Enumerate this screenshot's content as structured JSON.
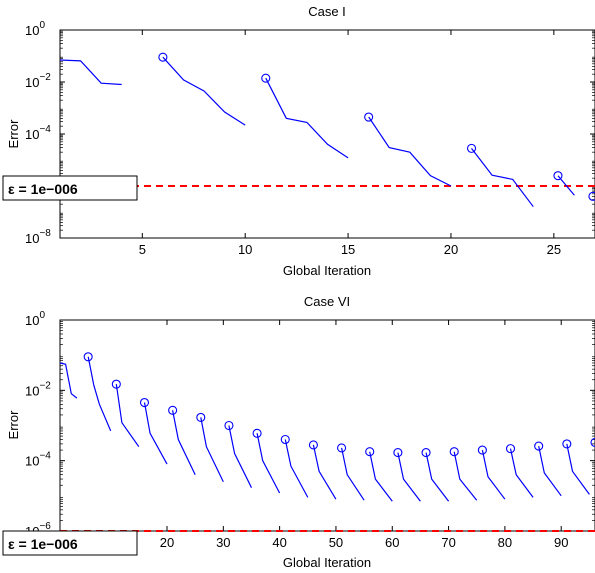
{
  "chart_data": [
    {
      "type": "line",
      "title": "Case I",
      "xlabel": "Global Iteration",
      "ylabel": "Error",
      "yscale": "log",
      "xlim": [
        1,
        27
      ],
      "ylim": [
        1e-08,
        1
      ],
      "xticks": [
        5,
        10,
        15,
        20,
        25
      ],
      "yticks": [
        {
          "value": 1,
          "base": "10",
          "exp": "0"
        },
        {
          "value": 0.01,
          "base": "10",
          "exp": "−2"
        },
        {
          "value": 0.0001,
          "base": "10",
          "exp": "−4"
        },
        {
          "value": 1e-06,
          "base": "10",
          "exp": "−6"
        },
        {
          "value": 1e-08,
          "base": "10",
          "exp": "−8"
        }
      ],
      "threshold": {
        "value": 1e-06,
        "label": "ε = 1e−006",
        "color": "#ff0000",
        "style": "dashed"
      },
      "line_color": "#0000ff",
      "segments": [
        {
          "x": [
            1,
            2,
            3,
            4
          ],
          "y": [
            0.07,
            0.065,
            0.009,
            0.008
          ],
          "marker_first": false
        },
        {
          "x": [
            6,
            7,
            8,
            9,
            10
          ],
          "y": [
            0.09,
            0.012,
            0.0045,
            0.0007,
            0.00022
          ],
          "marker_first": true
        },
        {
          "x": [
            11,
            12,
            13,
            14,
            15
          ],
          "y": [
            0.014,
            0.0004,
            0.00028,
            4e-05,
            1.2e-05
          ],
          "marker_first": true
        },
        {
          "x": [
            16,
            17,
            18,
            19,
            20
          ],
          "y": [
            0.00045,
            3e-05,
            2e-05,
            2.5e-06,
            1e-06
          ],
          "marker_first": true
        },
        {
          "x": [
            21,
            22,
            23,
            24
          ],
          "y": [
            2.8e-05,
            2.6e-06,
            1.8e-06,
            1.6e-07
          ],
          "marker_first": true
        },
        {
          "x": [
            25.2,
            26
          ],
          "y": [
            2.5e-06,
            4.4e-07
          ],
          "marker_first": true
        },
        {
          "x": [
            26.9
          ],
          "y": [
            4e-07
          ],
          "marker_first": true
        }
      ]
    },
    {
      "type": "line",
      "title": "Case VI",
      "xlabel": "Global Iteration",
      "ylabel": "Error",
      "yscale": "log",
      "xlim": [
        1,
        96
      ],
      "ylim": [
        1e-06,
        1
      ],
      "xticks": [
        20,
        30,
        40,
        50,
        60,
        70,
        80,
        90
      ],
      "yticks": [
        {
          "value": 1,
          "base": "10",
          "exp": "0"
        },
        {
          "value": 0.01,
          "base": "10",
          "exp": "−2"
        },
        {
          "value": 0.0001,
          "base": "10",
          "exp": "−4"
        },
        {
          "value": 1e-06,
          "base": "10",
          "exp": "−6"
        }
      ],
      "threshold": {
        "value": 1e-06,
        "label": "ε = 1e−006",
        "color": "#ff0000",
        "style": "dashed"
      },
      "line_color": "#0000ff",
      "segments": [
        {
          "x": [
            1,
            2,
            3,
            4
          ],
          "y": [
            0.06,
            0.055,
            0.008,
            0.006
          ],
          "marker_first": false
        },
        {
          "x": [
            6,
            7,
            8,
            10
          ],
          "y": [
            0.09,
            0.014,
            0.004,
            0.0007
          ],
          "marker_first": true
        },
        {
          "x": [
            11,
            12,
            15
          ],
          "y": [
            0.015,
            0.0012,
            0.00025
          ],
          "marker_first": true
        },
        {
          "x": [
            16,
            17,
            20
          ],
          "y": [
            0.0045,
            0.0006,
            8e-05
          ],
          "marker_first": true
        },
        {
          "x": [
            21,
            22,
            25
          ],
          "y": [
            0.0027,
            0.0004,
            4e-05
          ],
          "marker_first": true
        },
        {
          "x": [
            26,
            27,
            30
          ],
          "y": [
            0.0017,
            0.00025,
            2.5e-05
          ],
          "marker_first": true
        },
        {
          "x": [
            31,
            32,
            35
          ],
          "y": [
            0.001,
            0.00016,
            1.7e-05
          ],
          "marker_first": true
        },
        {
          "x": [
            36,
            37,
            40
          ],
          "y": [
            0.0006,
            0.0001,
            1.2e-05
          ],
          "marker_first": true
        },
        {
          "x": [
            41,
            42,
            45
          ],
          "y": [
            0.0004,
            7e-05,
            9e-06
          ],
          "marker_first": true
        },
        {
          "x": [
            46,
            47,
            50
          ],
          "y": [
            0.00028,
            5e-05,
            8e-06
          ],
          "marker_first": true
        },
        {
          "x": [
            51,
            52,
            55
          ],
          "y": [
            0.00023,
            4e-05,
            7.5e-06
          ],
          "marker_first": true
        },
        {
          "x": [
            56,
            57,
            60
          ],
          "y": [
            0.00018,
            3e-05,
            7e-06
          ],
          "marker_first": true
        },
        {
          "x": [
            61,
            62,
            65
          ],
          "y": [
            0.00017,
            3e-05,
            7e-06
          ],
          "marker_first": true
        },
        {
          "x": [
            66,
            67,
            70
          ],
          "y": [
            0.00017,
            3e-05,
            7e-06
          ],
          "marker_first": true
        },
        {
          "x": [
            71,
            72,
            75
          ],
          "y": [
            0.00018,
            3e-05,
            7.5e-06
          ],
          "marker_first": true
        },
        {
          "x": [
            76,
            77,
            80
          ],
          "y": [
            0.0002,
            3.5e-05,
            8e-06
          ],
          "marker_first": true
        },
        {
          "x": [
            81,
            82,
            85
          ],
          "y": [
            0.00022,
            4e-05,
            9e-06
          ],
          "marker_first": true
        },
        {
          "x": [
            86,
            87,
            90
          ],
          "y": [
            0.00026,
            4.5e-05,
            1e-05
          ],
          "marker_first": true
        },
        {
          "x": [
            91,
            92,
            95
          ],
          "y": [
            0.0003,
            5e-05,
            1.1e-05
          ],
          "marker_first": true
        },
        {
          "x": [
            96
          ],
          "y": [
            0.00033
          ],
          "marker_first": true
        }
      ]
    }
  ]
}
